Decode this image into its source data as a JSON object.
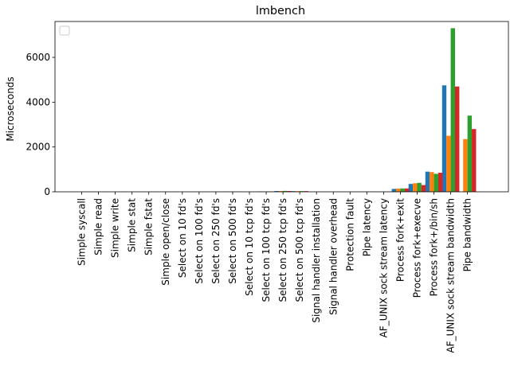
{
  "chart_data": {
    "type": "bar",
    "title": "lmbench",
    "xlabel": "",
    "ylabel": "Microseconds",
    "ylim": [
      0,
      7600
    ],
    "yticks": [
      0,
      2000,
      4000,
      6000
    ],
    "ytick_labels": [
      "0",
      "2000",
      "4000",
      "6000"
    ],
    "grid": false,
    "legend": {
      "placement": "upper left",
      "entries": []
    },
    "categories": [
      "Simple syscall",
      "Simple read",
      "Simple write",
      "Simple stat",
      "Simple fstat",
      "Simple open/close",
      "Select on 10 fd's",
      "Select on 100 fd's",
      "Select on 250 fd's",
      "Select on 500 fd's",
      "Select on 10 tcp fd's",
      "Select on 100 tcp fd's",
      "Select on 250 tcp fd's",
      "Select on 500 tcp fd's",
      "Signal handler installation",
      "Signal handler overhead",
      "Protection fault",
      "Pipe latency",
      "AF_UNIX sock stream latency",
      "Process fork+exit",
      "Process fork+execve",
      "Process fork+/bin/sh",
      "AF_UNIX sock stream bandwidth",
      "Pipe bandwidth"
    ],
    "series": [
      {
        "color": "#1f77b4",
        "values": [
          0.3,
          0.3,
          0.3,
          1,
          0.3,
          2,
          0.5,
          1.5,
          4,
          7,
          3,
          15,
          35,
          30,
          0.5,
          1.5,
          0.5,
          5,
          6,
          130,
          350,
          900,
          4750,
          0
        ]
      },
      {
        "color": "#ff7f0e",
        "values": [
          0.3,
          0.3,
          0.3,
          1,
          0.3,
          2,
          0.5,
          1.5,
          4,
          7,
          3,
          15,
          35,
          30,
          0.5,
          1.5,
          0.5,
          5,
          6,
          140,
          380,
          880,
          2500,
          2350
        ]
      },
      {
        "color": "#2ca02c",
        "values": [
          0.3,
          0.3,
          0.3,
          1,
          0.3,
          2,
          0.5,
          1.5,
          4,
          7,
          3,
          15,
          40,
          30,
          0.5,
          1.5,
          0.5,
          5,
          6,
          150,
          400,
          800,
          7300,
          3400
        ]
      },
      {
        "color": "#d62728",
        "values": [
          0.3,
          0.3,
          0.3,
          1,
          0.3,
          2,
          0.5,
          1.5,
          4,
          7,
          3,
          15,
          35,
          30,
          0.5,
          1.5,
          0.5,
          5,
          6,
          150,
          300,
          850,
          4700,
          2800
        ]
      }
    ]
  }
}
